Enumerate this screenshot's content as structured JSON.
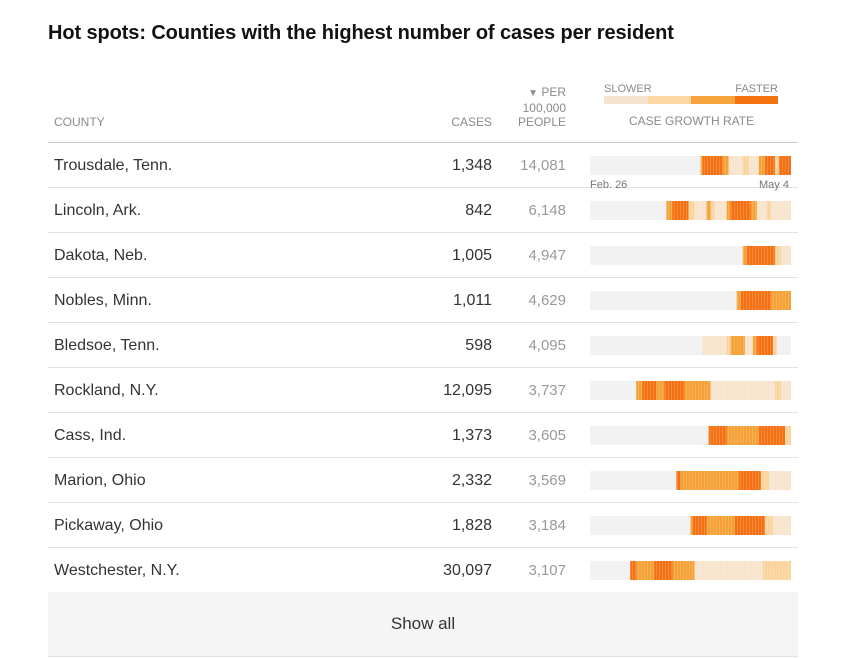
{
  "title": "Hot spots: Counties with the highest number of cases per resident",
  "header": {
    "county": "COUNTY",
    "cases": "CASES",
    "per_arrow": "▼",
    "per_line1": "PER",
    "per_line2": "100,000",
    "per_line3": "PEOPLE",
    "growth": "CASE GROWTH RATE",
    "legend_slow": "SLOWER",
    "legend_fast": "FASTER"
  },
  "colors": {
    "none": "#f1f1f1",
    "level1": "#f8e4cc",
    "level2": "#fbd39d",
    "level3": "#f5a136",
    "level4": "#f47012",
    "legend": [
      "#f6e3cd",
      "#fcd7a3",
      "#f6a43d",
      "#f47210"
    ]
  },
  "dates": {
    "start": "Feb. 26",
    "end": "May 4"
  },
  "rows": [
    {
      "county": "Trousdale, Tenn.",
      "cases": "1,348",
      "per": "14,081",
      "growth": [
        [
          0,
          0.55,
          0
        ],
        [
          0.55,
          0.56,
          3
        ],
        [
          0.56,
          0.66,
          4
        ],
        [
          0.66,
          0.69,
          3
        ],
        [
          0.69,
          0.76,
          1
        ],
        [
          0.76,
          0.79,
          2
        ],
        [
          0.79,
          0.84,
          1
        ],
        [
          0.84,
          0.87,
          3
        ],
        [
          0.87,
          0.92,
          4
        ],
        [
          0.92,
          0.94,
          2
        ],
        [
          0.94,
          1,
          4
        ]
      ]
    },
    {
      "county": "Lincoln, Ark.",
      "cases": "842",
      "per": "6,148",
      "growth": [
        [
          0,
          0.38,
          0
        ],
        [
          0.38,
          0.41,
          3
        ],
        [
          0.41,
          0.49,
          4
        ],
        [
          0.49,
          0.52,
          2
        ],
        [
          0.52,
          0.58,
          1
        ],
        [
          0.58,
          0.6,
          3
        ],
        [
          0.6,
          0.62,
          2
        ],
        [
          0.62,
          0.68,
          1
        ],
        [
          0.68,
          0.7,
          3
        ],
        [
          0.7,
          0.8,
          4
        ],
        [
          0.8,
          0.83,
          3
        ],
        [
          0.83,
          0.88,
          1
        ],
        [
          0.88,
          0.9,
          2
        ],
        [
          0.9,
          1,
          1
        ]
      ]
    },
    {
      "county": "Dakota, Neb.",
      "cases": "1,005",
      "per": "4,947",
      "growth": [
        [
          0,
          0.76,
          0
        ],
        [
          0.76,
          0.78,
          3
        ],
        [
          0.78,
          0.92,
          4
        ],
        [
          0.92,
          0.95,
          2
        ],
        [
          0.95,
          1,
          1
        ]
      ]
    },
    {
      "county": "Nobles, Minn.",
      "cases": "1,011",
      "per": "4,629",
      "growth": [
        [
          0,
          0.73,
          0
        ],
        [
          0.73,
          0.75,
          3
        ],
        [
          0.75,
          0.9,
          4
        ],
        [
          0.9,
          1,
          3
        ]
      ]
    },
    {
      "county": "Bledsoe, Tenn.",
      "cases": "598",
      "per": "4,095",
      "growth": [
        [
          0,
          0.56,
          0
        ],
        [
          0.56,
          0.68,
          1
        ],
        [
          0.68,
          0.7,
          2
        ],
        [
          0.7,
          0.77,
          3
        ],
        [
          0.77,
          0.81,
          1
        ],
        [
          0.81,
          0.83,
          3
        ],
        [
          0.83,
          0.91,
          4
        ],
        [
          0.91,
          0.93,
          2
        ],
        [
          0.93,
          1,
          0
        ]
      ]
    },
    {
      "county": "Rockland, N.Y.",
      "cases": "12,095",
      "per": "3,737",
      "growth": [
        [
          0,
          0.23,
          0
        ],
        [
          0.23,
          0.26,
          3
        ],
        [
          0.26,
          0.33,
          4
        ],
        [
          0.33,
          0.37,
          3
        ],
        [
          0.37,
          0.47,
          4
        ],
        [
          0.47,
          0.6,
          3
        ],
        [
          0.6,
          0.92,
          1
        ],
        [
          0.92,
          0.95,
          2
        ],
        [
          0.95,
          1,
          1
        ]
      ]
    },
    {
      "county": "Cass, Ind.",
      "cases": "1,373",
      "per": "3,605",
      "growth": [
        [
          0,
          0.59,
          0
        ],
        [
          0.59,
          0.68,
          4
        ],
        [
          0.68,
          0.84,
          3
        ],
        [
          0.84,
          0.97,
          4
        ],
        [
          0.97,
          1,
          2
        ]
      ]
    },
    {
      "county": "Marion, Ohio",
      "cases": "2,332",
      "per": "3,569",
      "growth": [
        [
          0,
          0.43,
          0
        ],
        [
          0.43,
          0.45,
          4
        ],
        [
          0.45,
          0.74,
          3
        ],
        [
          0.74,
          0.85,
          4
        ],
        [
          0.85,
          0.89,
          2
        ],
        [
          0.89,
          1,
          1
        ]
      ]
    },
    {
      "county": "Pickaway, Ohio",
      "cases": "1,828",
      "per": "3,184",
      "growth": [
        [
          0,
          0.5,
          0
        ],
        [
          0.5,
          0.51,
          3
        ],
        [
          0.51,
          0.58,
          4
        ],
        [
          0.58,
          0.72,
          3
        ],
        [
          0.72,
          0.87,
          4
        ],
        [
          0.87,
          0.91,
          2
        ],
        [
          0.91,
          1,
          1
        ]
      ]
    },
    {
      "county": "Westchester, N.Y.",
      "cases": "30,097",
      "per": "3,107",
      "growth": [
        [
          0,
          0.2,
          0
        ],
        [
          0.2,
          0.23,
          4
        ],
        [
          0.23,
          0.32,
          3
        ],
        [
          0.32,
          0.41,
          4
        ],
        [
          0.41,
          0.52,
          3
        ],
        [
          0.52,
          0.86,
          1
        ],
        [
          0.86,
          1,
          2
        ]
      ]
    }
  ],
  "show_all": "Show all"
}
